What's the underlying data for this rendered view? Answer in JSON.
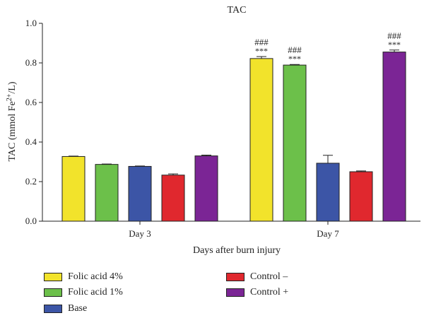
{
  "chart_data": {
    "type": "bar",
    "title": "TAC",
    "ylabel_main": "TAC (mmol Fe",
    "ylabel_sup": "2+",
    "ylabel_end": "/L)",
    "xlabel": "Days after burn injury",
    "ylim": [
      0,
      1.0
    ],
    "yticks": [
      "0.0",
      "0.2",
      "0.4",
      "0.6",
      "0.8",
      "1.0"
    ],
    "grid": false,
    "legend_position": "bottom",
    "categories": [
      "Day 3",
      "Day 7"
    ],
    "series": [
      {
        "name": "Folic acid 4%",
        "color": "#f2e32b",
        "values": [
          0.327,
          0.822
        ],
        "errors": [
          0.002,
          0.01
        ],
        "sig": [
          "",
          "***"
        ],
        "sig2": [
          "",
          "###"
        ]
      },
      {
        "name": "Folic acid 1%",
        "color": "#6cc04a",
        "values": [
          0.287,
          0.789
        ],
        "errors": [
          0.002,
          0.003
        ],
        "sig": [
          "",
          "***"
        ],
        "sig2": [
          "",
          "###"
        ]
      },
      {
        "name": "Base",
        "color": "#3c55a6",
        "values": [
          0.277,
          0.293
        ],
        "errors": [
          0.002,
          0.04
        ],
        "sig": [
          "",
          ""
        ],
        "sig2": [
          "",
          ""
        ]
      },
      {
        "name": "Control –",
        "color": "#e0282e",
        "values": [
          0.233,
          0.25
        ],
        "errors": [
          0.006,
          0.004
        ],
        "sig": [
          "",
          ""
        ],
        "sig2": [
          "",
          ""
        ]
      },
      {
        "name": "Control +",
        "color": "#7b2595",
        "values": [
          0.33,
          0.855
        ],
        "errors": [
          0.004,
          0.01
        ],
        "sig": [
          "",
          "***"
        ],
        "sig2": [
          "",
          "###"
        ]
      }
    ]
  }
}
